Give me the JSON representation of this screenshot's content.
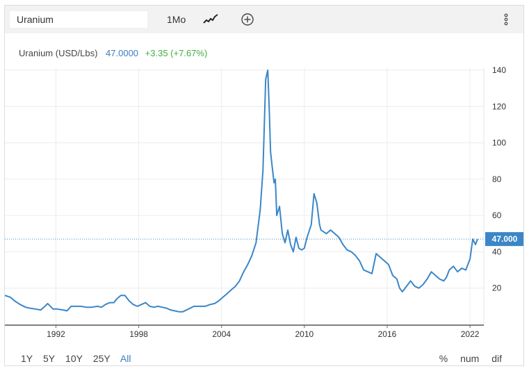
{
  "toolbar": {
    "symbol_value": "Uranium",
    "interval_label": "1Mo",
    "icons": [
      "line-chart-icon",
      "add-circle-icon",
      "more-vertical-icon"
    ]
  },
  "legend": {
    "name": "Uranium (USD/Lbs)",
    "value": "47.0000",
    "change": "+3.35 (+7.67%)"
  },
  "colors": {
    "line": "#3a86c8",
    "value_blue": "#3a7cc2",
    "change_green": "#3fae3f",
    "current_tag_bg": "#3a86c8"
  },
  "ranges": {
    "items": [
      "1Y",
      "5Y",
      "10Y",
      "25Y",
      "All"
    ],
    "active": "All"
  },
  "modes": [
    "%",
    "num",
    "dif"
  ],
  "chart_data": {
    "type": "line",
    "title": "Uranium (USD/Lbs)",
    "xlabel": "",
    "ylabel": "",
    "xlim": [
      1988.3,
      2022.55
    ],
    "ylim": [
      0,
      141
    ],
    "yticks": [
      20,
      40,
      60,
      80,
      100,
      120,
      140
    ],
    "xticks": [
      "1992",
      "1998",
      "2004",
      "2010",
      "2016",
      "2022"
    ],
    "xtick_years": [
      1992,
      1998,
      2004,
      2010,
      2016,
      2022
    ],
    "grid": true,
    "current_value_label": "47.000",
    "current_value": 47,
    "series": [
      {
        "x": [
          1988.3,
          1988.7,
          1989.0,
          1989.4,
          1989.8,
          1990.1,
          1990.5,
          1990.9,
          1991.2,
          1991.4,
          1991.6,
          1991.8,
          1992.1,
          1992.5,
          1992.8,
          1993.1,
          1993.5,
          1993.8,
          1994.2,
          1994.6,
          1995.0,
          1995.3,
          1995.6,
          1995.9,
          1996.2,
          1996.4,
          1996.7,
          1997.0,
          1997.3,
          1997.6,
          1997.9,
          1998.2,
          1998.5,
          1998.8,
          1999.1,
          1999.4,
          1999.7,
          2000.0,
          2000.3,
          2000.6,
          2000.9,
          2001.2,
          2001.6,
          2002.0,
          2002.4,
          2002.8,
          2003.2,
          2003.5,
          2003.8,
          2004.1,
          2004.4,
          2004.7,
          2005.0,
          2005.3,
          2005.6,
          2005.9,
          2006.2,
          2006.5,
          2006.8,
          2007.0,
          2007.2,
          2007.35,
          2007.45,
          2007.55,
          2007.65,
          2007.8,
          2007.9,
          2008.0,
          2008.2,
          2008.4,
          2008.6,
          2008.8,
          2009.0,
          2009.2,
          2009.4,
          2009.6,
          2009.8,
          2010.0,
          2010.2,
          2010.5,
          2010.7,
          2010.9,
          2011.0,
          2011.1,
          2011.2,
          2011.4,
          2011.6,
          2011.9,
          2012.2,
          2012.5,
          2012.8,
          2013.1,
          2013.4,
          2013.7,
          2014.0,
          2014.3,
          2014.6,
          2014.9,
          2015.2,
          2015.5,
          2015.8,
          2016.1,
          2016.4,
          2016.7,
          2016.9,
          2017.1,
          2017.4,
          2017.7,
          2018.0,
          2018.3,
          2018.6,
          2018.9,
          2019.2,
          2019.5,
          2019.8,
          2020.1,
          2020.3,
          2020.5,
          2020.8,
          2021.1,
          2021.4,
          2021.7,
          2021.85,
          2022.0,
          2022.2,
          2022.4,
          2022.55
        ],
        "values": [
          16,
          15,
          13,
          11,
          9.5,
          9,
          8.5,
          8,
          10,
          11.5,
          10,
          8.5,
          8.5,
          8,
          7.5,
          10,
          10,
          10,
          9.5,
          9.5,
          10,
          9.5,
          11,
          12,
          12,
          14,
          16,
          16,
          13,
          11,
          10,
          11,
          12,
          10,
          9.5,
          10,
          9.5,
          9,
          8,
          7.5,
          7,
          7,
          8.5,
          10,
          10,
          10,
          11,
          11.5,
          13,
          15,
          17,
          19,
          21,
          24,
          29,
          33,
          38,
          45,
          63,
          85,
          135,
          140,
          120,
          95,
          88,
          78,
          80,
          60,
          65,
          50,
          45,
          52,
          44,
          40,
          48,
          42,
          41,
          42,
          48,
          55,
          72,
          67,
          61,
          55,
          52,
          51,
          50,
          52,
          50,
          48,
          44,
          41,
          40,
          38,
          35,
          30,
          29,
          28,
          39,
          37,
          35,
          33,
          27,
          25,
          20,
          18,
          21,
          24,
          21,
          20,
          22,
          25,
          29,
          27,
          25,
          24,
          26,
          30,
          32,
          29,
          31,
          30,
          33,
          36,
          47,
          44,
          47
        ]
      }
    ]
  }
}
